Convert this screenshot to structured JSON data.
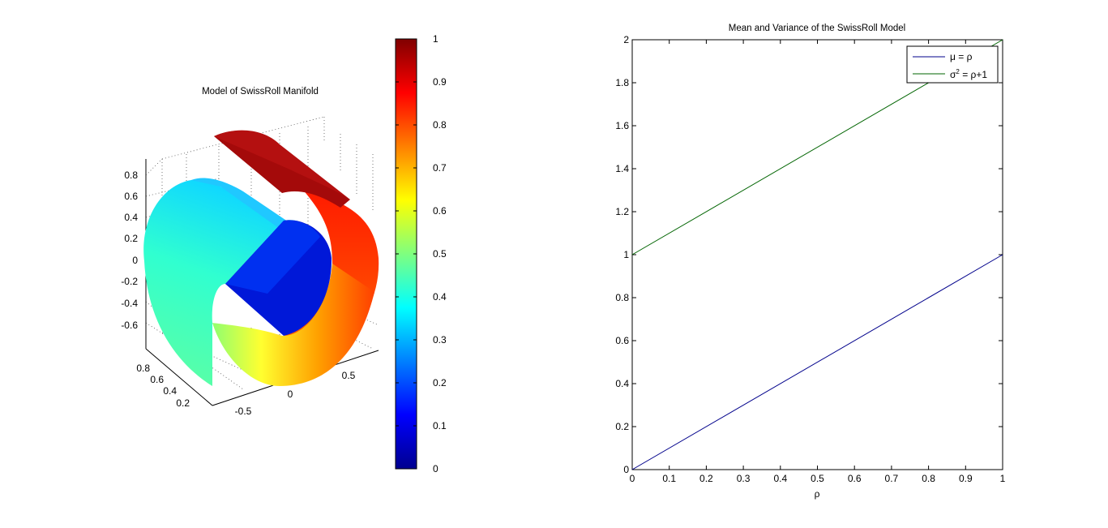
{
  "chart_data": [
    {
      "type": "surface",
      "title": "Model of SwissRoll Manifold",
      "zticks": [
        "0.8",
        "0.6",
        "0.4",
        "0.2",
        "0",
        "-0.2",
        "-0.4",
        "-0.6"
      ],
      "yticks": [
        "0.8",
        "0.6",
        "0.4",
        "0.2"
      ],
      "xticks": [
        "-0.5",
        "0",
        "0.5"
      ],
      "colorbar": {
        "colormap": "jet",
        "range": [
          0,
          1
        ],
        "ticks": [
          "0",
          "0.1",
          "0.2",
          "0.3",
          "0.4",
          "0.5",
          "0.6",
          "0.7",
          "0.8",
          "0.9",
          "1"
        ]
      },
      "grid": true
    },
    {
      "type": "line",
      "title": "Mean and Variance of the SwissRoll Model",
      "xlabel": "ρ",
      "ylabel": "",
      "xlim": [
        0,
        1
      ],
      "ylim": [
        0,
        2
      ],
      "xticks": [
        "0",
        "0.1",
        "0.2",
        "0.3",
        "0.4",
        "0.5",
        "0.6",
        "0.7",
        "0.8",
        "0.9",
        "1"
      ],
      "yticks": [
        "0",
        "0.2",
        "0.4",
        "0.6",
        "0.8",
        "1",
        "1.2",
        "1.4",
        "1.6",
        "1.8",
        "2"
      ],
      "legend_position": "top-right",
      "series": [
        {
          "name": "μ = ρ",
          "legend_base": "μ = ρ",
          "color": "#00008b",
          "x": [
            0,
            1
          ],
          "y": [
            0,
            1
          ]
        },
        {
          "name": "σ2 = ρ+1",
          "legend_base": "σ",
          "legend_sup": "2",
          "legend_rest": " = ρ+1",
          "color": "#006400",
          "x": [
            0,
            1
          ],
          "y": [
            1,
            2
          ]
        }
      ]
    }
  ]
}
